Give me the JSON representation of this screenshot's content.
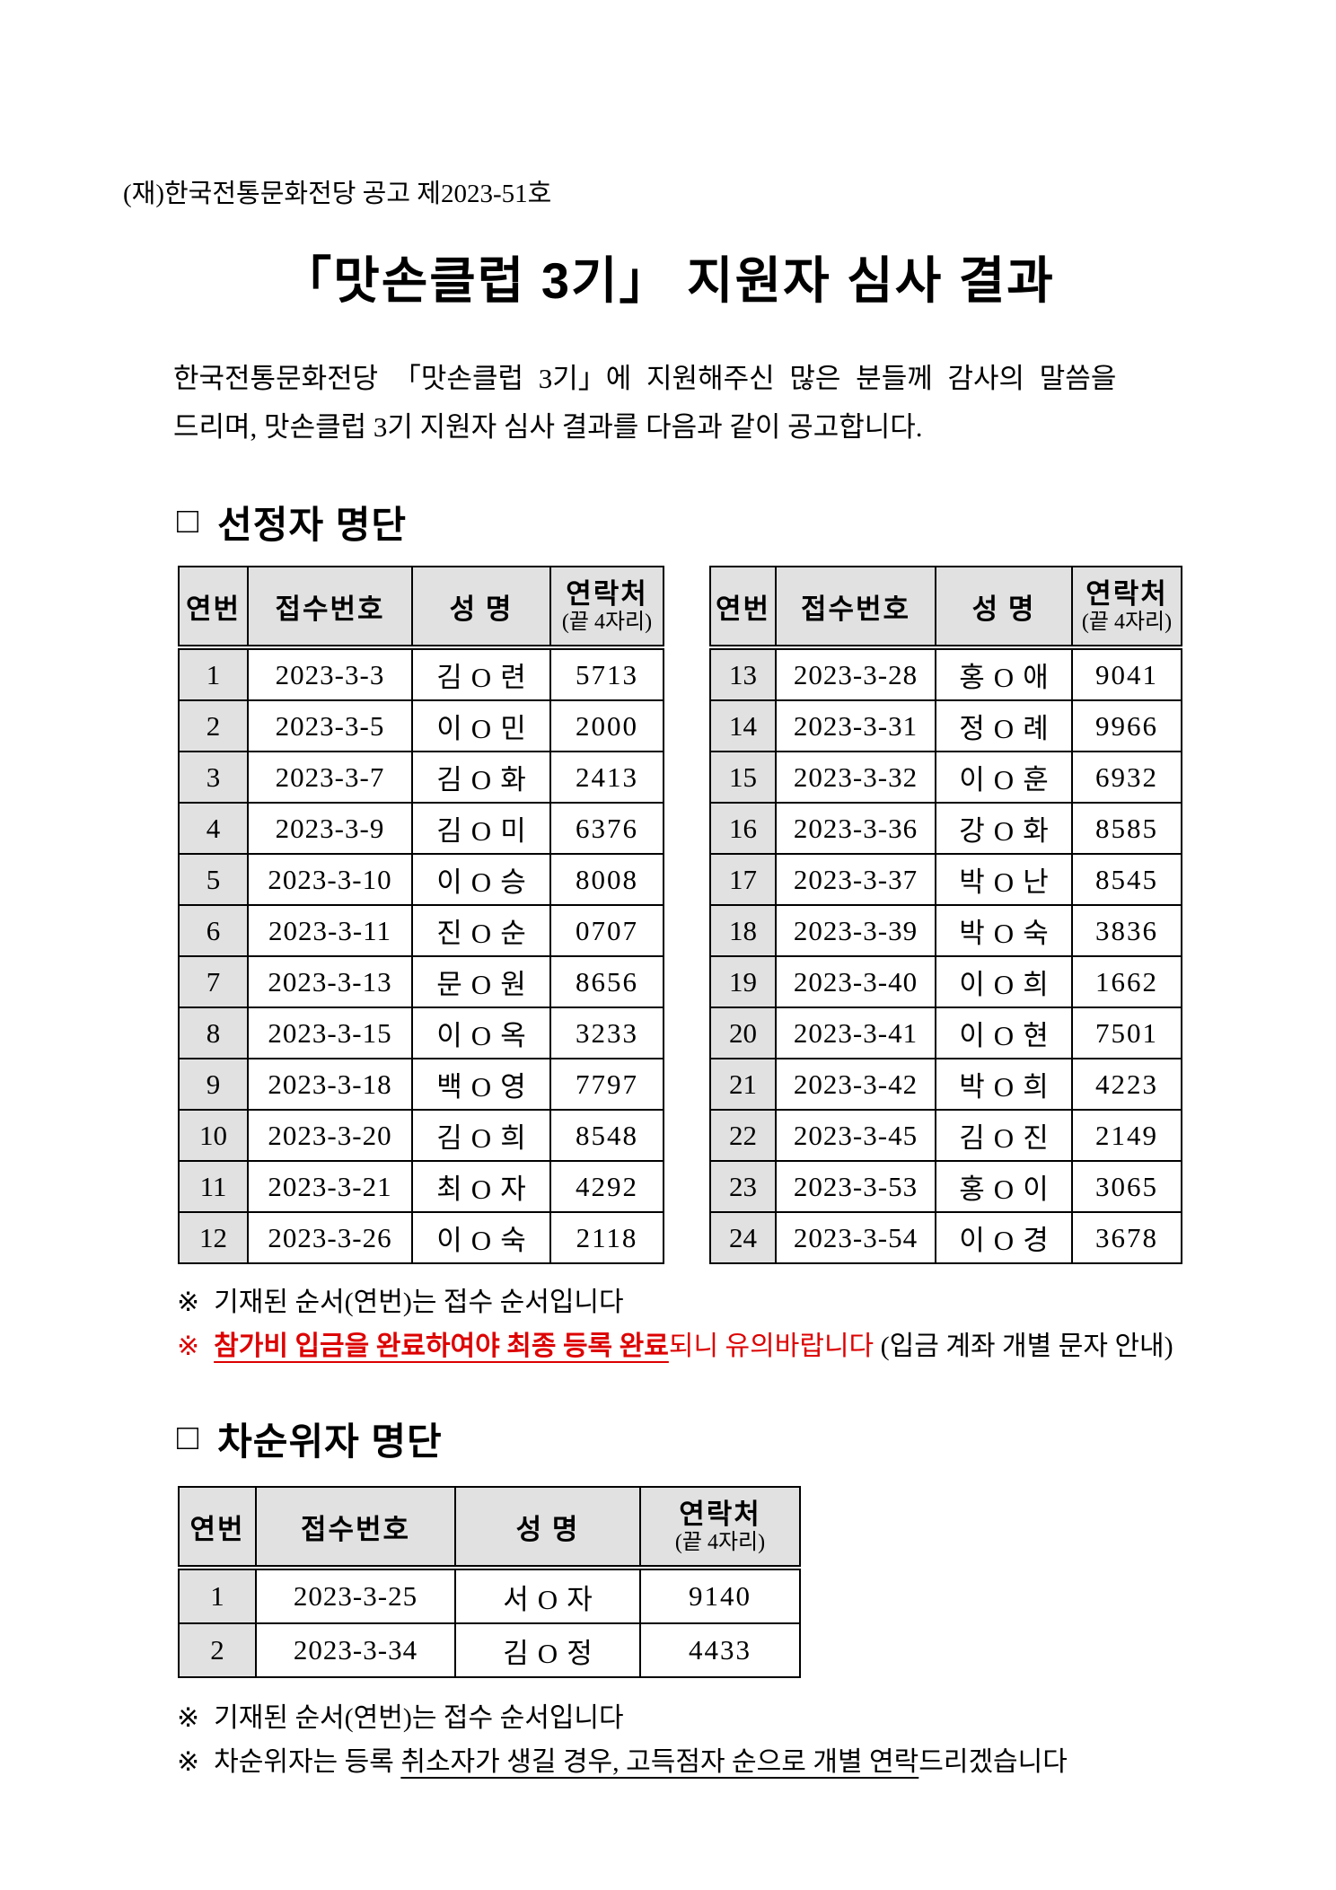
{
  "doc": {
    "doc_number": "(재)한국전통문화전당 공고 제2023-51호",
    "title": "「맛손클럽 3기」 지원자 심사 결과",
    "intro_line1": "한국전통문화전당  「맛손클럽 3기」에  지원해주신  많은  분들께  감사의  말씀을",
    "intro_line2": "드리며, 맛손클럽 3기 지원자 심사 결과를 다음과 같이 공고합니다.",
    "box_glyph": "□",
    "note_mark": "※"
  },
  "table_columns": {
    "no": "연번",
    "receipt": "접수번호",
    "name": "성 명",
    "contact": "연락처",
    "contact_sub": "(끝 4자리)"
  },
  "selected_section": {
    "heading": "선정자 명단",
    "left_rows": [
      {
        "no": "1",
        "receipt": "2023-3-3",
        "name": "김O련",
        "contact": "5713"
      },
      {
        "no": "2",
        "receipt": "2023-3-5",
        "name": "이O민",
        "contact": "2000"
      },
      {
        "no": "3",
        "receipt": "2023-3-7",
        "name": "김O화",
        "contact": "2413"
      },
      {
        "no": "4",
        "receipt": "2023-3-9",
        "name": "김O미",
        "contact": "6376"
      },
      {
        "no": "5",
        "receipt": "2023-3-10",
        "name": "이O승",
        "contact": "8008"
      },
      {
        "no": "6",
        "receipt": "2023-3-11",
        "name": "진O순",
        "contact": "0707"
      },
      {
        "no": "7",
        "receipt": "2023-3-13",
        "name": "문O원",
        "contact": "8656"
      },
      {
        "no": "8",
        "receipt": "2023-3-15",
        "name": "이O옥",
        "contact": "3233"
      },
      {
        "no": "9",
        "receipt": "2023-3-18",
        "name": "백O영",
        "contact": "7797"
      },
      {
        "no": "10",
        "receipt": "2023-3-20",
        "name": "김O희",
        "contact": "8548"
      },
      {
        "no": "11",
        "receipt": "2023-3-21",
        "name": "최O자",
        "contact": "4292"
      },
      {
        "no": "12",
        "receipt": "2023-3-26",
        "name": "이O숙",
        "contact": "2118"
      }
    ],
    "right_rows": [
      {
        "no": "13",
        "receipt": "2023-3-28",
        "name": "홍O애",
        "contact": "9041"
      },
      {
        "no": "14",
        "receipt": "2023-3-31",
        "name": "정O례",
        "contact": "9966"
      },
      {
        "no": "15",
        "receipt": "2023-3-32",
        "name": "이O훈",
        "contact": "6932"
      },
      {
        "no": "16",
        "receipt": "2023-3-36",
        "name": "강O화",
        "contact": "8585"
      },
      {
        "no": "17",
        "receipt": "2023-3-37",
        "name": "박O난",
        "contact": "8545"
      },
      {
        "no": "18",
        "receipt": "2023-3-39",
        "name": "박O숙",
        "contact": "3836"
      },
      {
        "no": "19",
        "receipt": "2023-3-40",
        "name": "이O희",
        "contact": "1662"
      },
      {
        "no": "20",
        "receipt": "2023-3-41",
        "name": "이O현",
        "contact": "7501"
      },
      {
        "no": "21",
        "receipt": "2023-3-42",
        "name": "박O희",
        "contact": "4223"
      },
      {
        "no": "22",
        "receipt": "2023-3-45",
        "name": "김O진",
        "contact": "2149"
      },
      {
        "no": "23",
        "receipt": "2023-3-53",
        "name": "홍O이",
        "contact": "3065"
      },
      {
        "no": "24",
        "receipt": "2023-3-54",
        "name": "이O경",
        "contact": "3678"
      }
    ],
    "note1": "기재된 순서(연번)는 접수 순서입니다",
    "note2_red_strong": "참가비 입금을 완료하여야 최종 등록 완료",
    "note2_red": "되니 유의바랍니다",
    "note2_black": " (입금 계좌 개별 문자 안내)"
  },
  "waitlist_section": {
    "heading": "차순위자 명단",
    "rows": [
      {
        "no": "1",
        "receipt": "2023-3-25",
        "name": "서O자",
        "contact": "9140"
      },
      {
        "no": "2",
        "receipt": "2023-3-34",
        "name": "김O정",
        "contact": "4433"
      }
    ],
    "note1": "기재된 순서(연번)는 접수 순서입니다",
    "note2_prefix": "차순위자는 등록 ",
    "note2_underline": "취소자가 생길 경우, 고득점자 순으로 개별 연락",
    "note2_suffix": "드리겠습니다"
  },
  "colors": {
    "accent_red": "#dd0000",
    "table_header_bg": "#e1e1e1"
  }
}
